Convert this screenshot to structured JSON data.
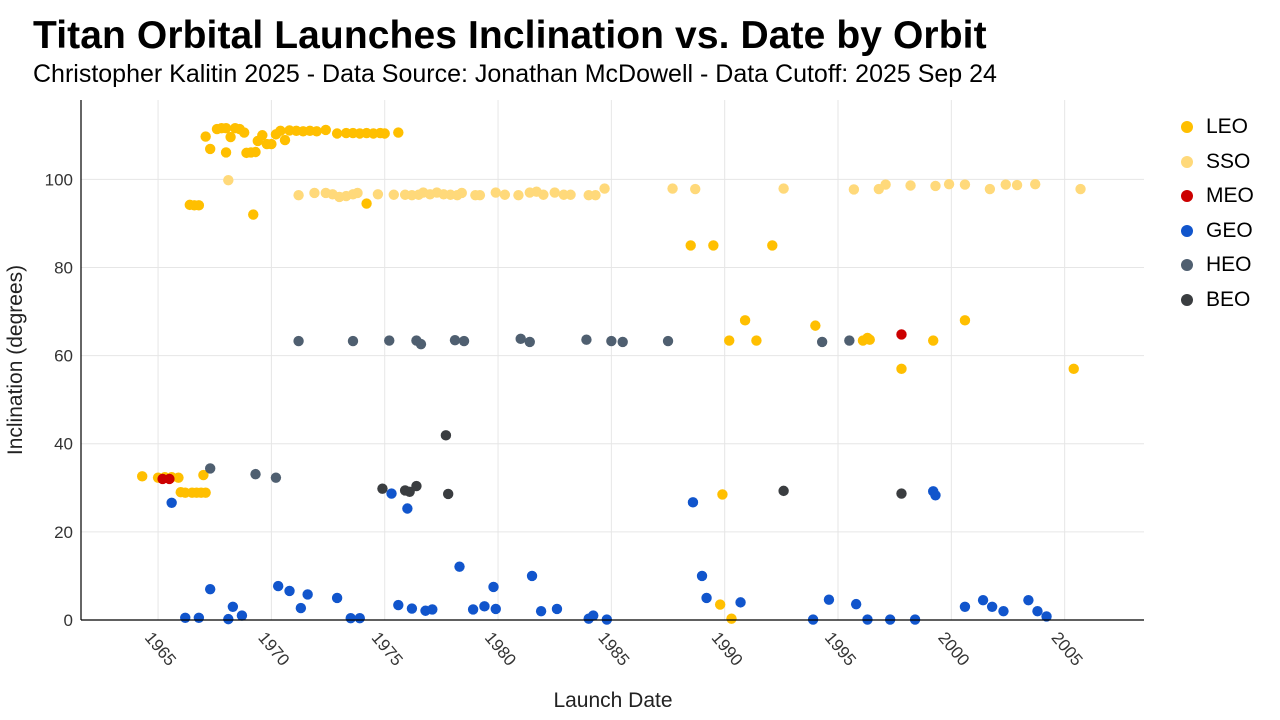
{
  "chart_data": {
    "type": "scatter",
    "title": "Titan Orbital Launches Inclination vs. Date by Orbit",
    "subtitle": "Christopher Kalitin 2025 - Data Source: Jonathan McDowell - Data Cutoff: 2025 Sep 24",
    "xlabel": "Launch Date",
    "ylabel": "Inclination (degrees)",
    "xlim": [
      1961.6,
      2008.5
    ],
    "ylim": [
      0,
      118
    ],
    "xticks": [
      1965,
      1970,
      1975,
      1980,
      1985,
      1990,
      1995,
      2000,
      2005
    ],
    "yticks": [
      0,
      20,
      40,
      60,
      80,
      100
    ],
    "grid": true,
    "legend_position": "right",
    "series": [
      {
        "name": "LEO",
        "color": "#FFBF00",
        "points": [
          [
            1964.3,
            32.6
          ],
          [
            1965.0,
            32.3
          ],
          [
            1965.3,
            32.4
          ],
          [
            1965.6,
            32.4
          ],
          [
            1965.9,
            32.3
          ],
          [
            1966.0,
            29.0
          ],
          [
            1966.2,
            28.9
          ],
          [
            1966.5,
            28.9
          ],
          [
            1966.7,
            28.9
          ],
          [
            1966.9,
            28.9
          ],
          [
            1967.1,
            28.9
          ],
          [
            1967.0,
            32.9
          ],
          [
            1966.4,
            94.2
          ],
          [
            1966.6,
            94.1
          ],
          [
            1966.8,
            94.1
          ],
          [
            1969.2,
            92.0
          ],
          [
            1967.1,
            109.7
          ],
          [
            1967.3,
            106.9
          ],
          [
            1967.6,
            111.4
          ],
          [
            1967.8,
            111.6
          ],
          [
            1968.0,
            111.6
          ],
          [
            1968.0,
            106.1
          ],
          [
            1968.2,
            109.6
          ],
          [
            1968.4,
            111.6
          ],
          [
            1968.6,
            111.4
          ],
          [
            1968.8,
            110.6
          ],
          [
            1968.9,
            106.0
          ],
          [
            1969.1,
            106.1
          ],
          [
            1969.3,
            106.2
          ],
          [
            1969.4,
            108.7
          ],
          [
            1969.6,
            110.0
          ],
          [
            1969.8,
            108.0
          ],
          [
            1970.0,
            108.0
          ],
          [
            1970.2,
            110.2
          ],
          [
            1970.4,
            111.0
          ],
          [
            1970.6,
            108.9
          ],
          [
            1970.8,
            111.1
          ],
          [
            1971.1,
            111.0
          ],
          [
            1971.4,
            110.9
          ],
          [
            1971.7,
            111.0
          ],
          [
            1972.0,
            110.9
          ],
          [
            1972.4,
            111.2
          ],
          [
            1972.9,
            110.4
          ],
          [
            1973.3,
            110.5
          ],
          [
            1973.6,
            110.5
          ],
          [
            1973.9,
            110.4
          ],
          [
            1974.2,
            110.5
          ],
          [
            1974.5,
            110.4
          ],
          [
            1974.8,
            110.5
          ],
          [
            1975.0,
            110.4
          ],
          [
            1975.6,
            110.6
          ],
          [
            1974.2,
            94.5
          ],
          [
            1988.5,
            85.0
          ],
          [
            1989.5,
            85.0
          ],
          [
            1992.1,
            85.0
          ],
          [
            1990.2,
            63.4
          ],
          [
            1990.9,
            68.0
          ],
          [
            1991.4,
            63.4
          ],
          [
            1994.0,
            66.8
          ],
          [
            1996.1,
            63.4
          ],
          [
            1996.3,
            64.0
          ],
          [
            1996.4,
            63.6
          ],
          [
            1997.8,
            57.0
          ],
          [
            1999.2,
            63.4
          ],
          [
            2000.6,
            68.0
          ],
          [
            2005.4,
            57.0
          ],
          [
            1989.9,
            28.5
          ],
          [
            1989.8,
            3.5
          ],
          [
            1990.3,
            0.3
          ]
        ]
      },
      {
        "name": "SSO",
        "color": "#FFD97A",
        "points": [
          [
            1968.1,
            99.8
          ],
          [
            1971.2,
            96.4
          ],
          [
            1971.9,
            96.9
          ],
          [
            1972.4,
            96.9
          ],
          [
            1972.7,
            96.6
          ],
          [
            1973.0,
            96.0
          ],
          [
            1973.3,
            96.2
          ],
          [
            1973.6,
            96.6
          ],
          [
            1973.8,
            96.9
          ],
          [
            1974.7,
            96.6
          ],
          [
            1975.4,
            96.5
          ],
          [
            1975.9,
            96.5
          ],
          [
            1976.2,
            96.4
          ],
          [
            1976.5,
            96.5
          ],
          [
            1976.7,
            97.0
          ],
          [
            1977.0,
            96.6
          ],
          [
            1977.3,
            97.0
          ],
          [
            1977.6,
            96.6
          ],
          [
            1977.9,
            96.5
          ],
          [
            1978.2,
            96.4
          ],
          [
            1978.4,
            96.9
          ],
          [
            1979.0,
            96.4
          ],
          [
            1979.2,
            96.4
          ],
          [
            1979.9,
            97.0
          ],
          [
            1980.3,
            96.5
          ],
          [
            1980.9,
            96.4
          ],
          [
            1981.4,
            97.0
          ],
          [
            1981.7,
            97.2
          ],
          [
            1982.0,
            96.5
          ],
          [
            1982.5,
            97.0
          ],
          [
            1982.9,
            96.5
          ],
          [
            1983.2,
            96.5
          ],
          [
            1984.0,
            96.4
          ],
          [
            1984.3,
            96.4
          ],
          [
            1984.7,
            97.9
          ],
          [
            1987.7,
            97.9
          ],
          [
            1988.7,
            97.8
          ],
          [
            1992.6,
            97.9
          ],
          [
            1995.7,
            97.7
          ],
          [
            1996.8,
            97.8
          ],
          [
            1997.1,
            98.8
          ],
          [
            1998.2,
            98.6
          ],
          [
            1999.3,
            98.5
          ],
          [
            1999.9,
            98.9
          ],
          [
            2000.6,
            98.8
          ],
          [
            2001.7,
            97.8
          ],
          [
            2002.4,
            98.8
          ],
          [
            2002.9,
            98.7
          ],
          [
            2003.7,
            98.9
          ],
          [
            2005.7,
            97.8
          ]
        ]
      },
      {
        "name": "MEO",
        "color": "#CC0000",
        "points": [
          [
            1965.2,
            32.0
          ],
          [
            1965.5,
            32.0
          ],
          [
            1997.8,
            64.8
          ]
        ]
      },
      {
        "name": "GEO",
        "color": "#1155CC",
        "points": [
          [
            1965.6,
            26.6
          ],
          [
            1966.2,
            0.5
          ],
          [
            1966.8,
            0.5
          ],
          [
            1967.3,
            7.0
          ],
          [
            1968.1,
            0.2
          ],
          [
            1968.3,
            3.0
          ],
          [
            1968.7,
            1.0
          ],
          [
            1970.3,
            7.7
          ],
          [
            1970.8,
            6.6
          ],
          [
            1971.3,
            2.7
          ],
          [
            1971.6,
            5.8
          ],
          [
            1972.9,
            5.0
          ],
          [
            1973.5,
            0.4
          ],
          [
            1973.9,
            0.4
          ],
          [
            1975.3,
            28.7
          ],
          [
            1976.0,
            25.3
          ],
          [
            1975.6,
            3.4
          ],
          [
            1976.2,
            2.6
          ],
          [
            1976.8,
            2.1
          ],
          [
            1977.1,
            2.4
          ],
          [
            1978.3,
            12.1
          ],
          [
            1978.9,
            2.4
          ],
          [
            1979.4,
            3.1
          ],
          [
            1979.8,
            7.5
          ],
          [
            1979.9,
            2.5
          ],
          [
            1981.5,
            10.0
          ],
          [
            1981.9,
            2.0
          ],
          [
            1982.6,
            2.5
          ],
          [
            1984.0,
            0.3
          ],
          [
            1984.2,
            1.0
          ],
          [
            1984.8,
            0.1
          ],
          [
            1988.6,
            26.7
          ],
          [
            1989.0,
            10.0
          ],
          [
            1989.2,
            5.0
          ],
          [
            1990.7,
            4.0
          ],
          [
            1993.9,
            0.1
          ],
          [
            1994.6,
            4.6
          ],
          [
            1995.8,
            3.6
          ],
          [
            1996.3,
            0.1
          ],
          [
            1997.3,
            0.1
          ],
          [
            1998.4,
            0.1
          ],
          [
            1999.2,
            29.2
          ],
          [
            1999.3,
            28.3
          ],
          [
            2000.6,
            3.0
          ],
          [
            2001.4,
            4.5
          ],
          [
            2001.8,
            3.0
          ],
          [
            2002.3,
            2.0
          ],
          [
            2003.4,
            4.5
          ],
          [
            2003.8,
            2.0
          ],
          [
            2004.2,
            0.8
          ]
        ]
      },
      {
        "name": "HEO",
        "color": "#4F5F70",
        "points": [
          [
            1967.3,
            34.4
          ],
          [
            1969.3,
            33.1
          ],
          [
            1970.2,
            32.3
          ],
          [
            1971.2,
            63.3
          ],
          [
            1973.6,
            63.3
          ],
          [
            1975.2,
            63.4
          ],
          [
            1976.4,
            63.4
          ],
          [
            1976.6,
            62.6
          ],
          [
            1978.1,
            63.5
          ],
          [
            1978.5,
            63.3
          ],
          [
            1981.0,
            63.8
          ],
          [
            1981.4,
            63.1
          ],
          [
            1983.9,
            63.6
          ],
          [
            1985.0,
            63.3
          ],
          [
            1985.5,
            63.1
          ],
          [
            1987.5,
            63.3
          ],
          [
            1994.3,
            63.1
          ],
          [
            1995.5,
            63.4
          ]
        ]
      },
      {
        "name": "BEO",
        "color": "#3A3D40",
        "points": [
          [
            1974.9,
            29.8
          ],
          [
            1975.9,
            29.4
          ],
          [
            1976.1,
            29.1
          ],
          [
            1976.4,
            30.4
          ],
          [
            1977.7,
            41.9
          ],
          [
            1977.8,
            28.6
          ],
          [
            1992.6,
            29.3
          ],
          [
            1997.8,
            28.7
          ]
        ]
      }
    ]
  }
}
